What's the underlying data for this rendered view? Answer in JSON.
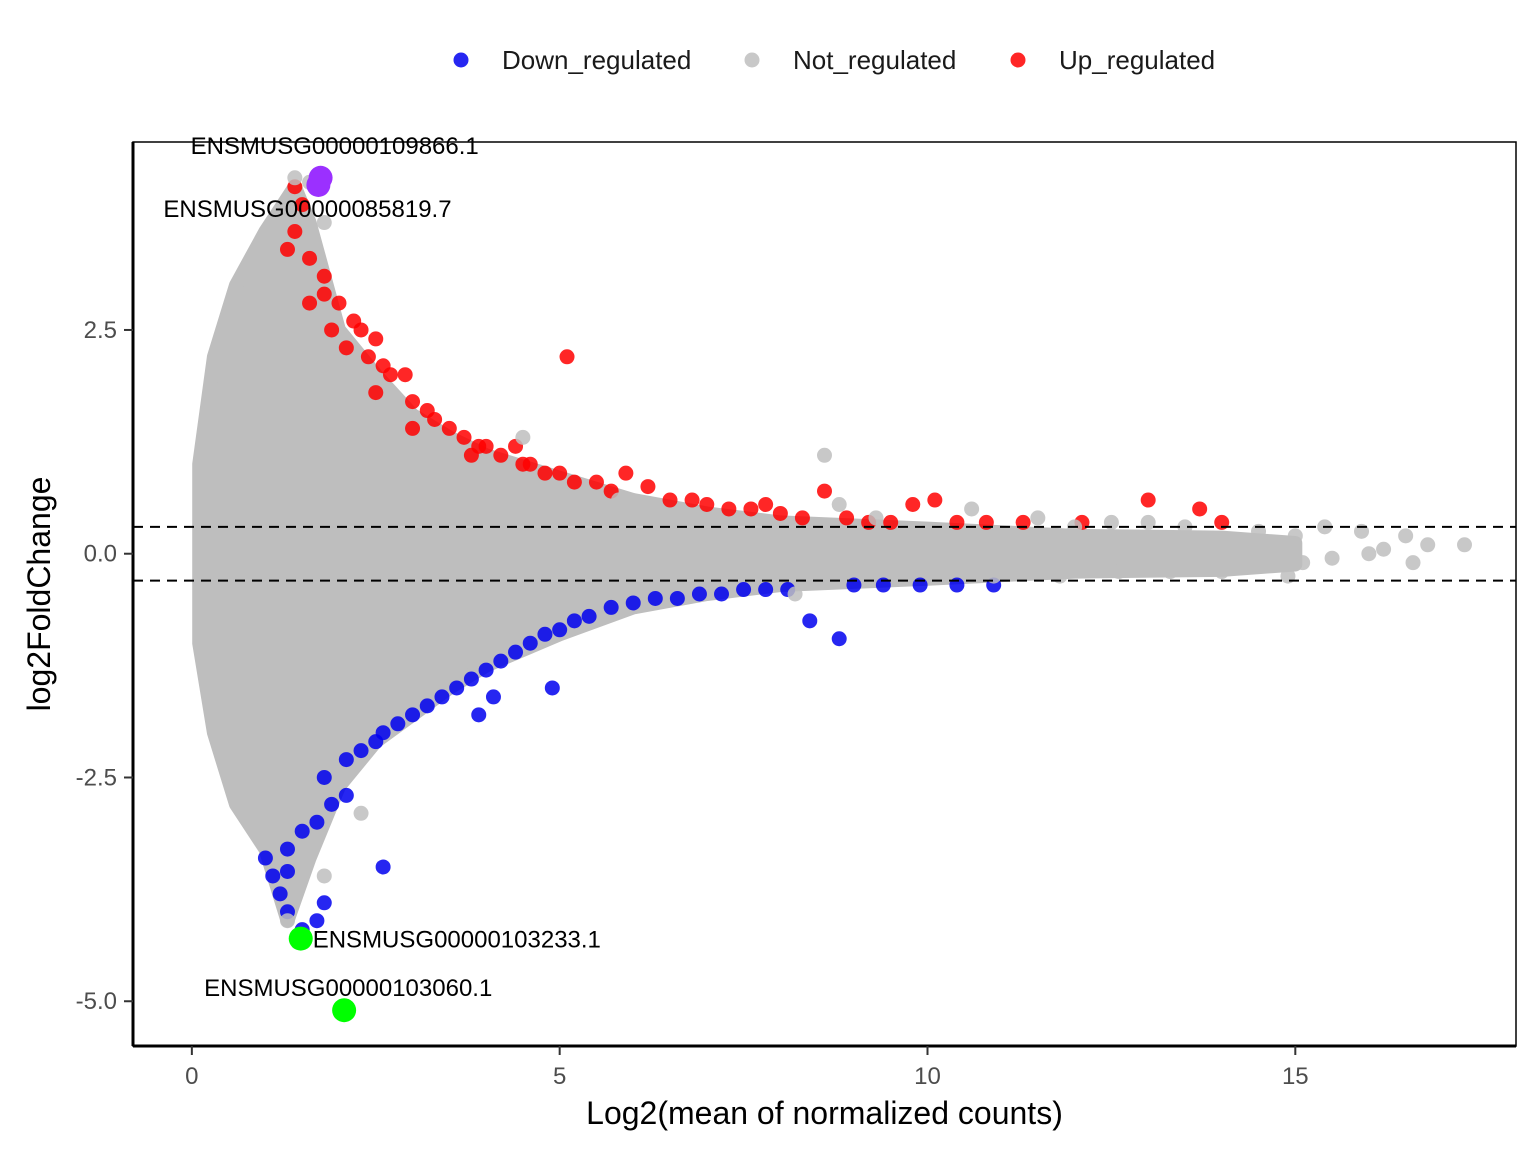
{
  "chart_data": {
    "type": "scatter",
    "title": "",
    "xlabel": "Log2(mean of normalized counts)",
    "ylabel": "log2FoldChange",
    "xlim": [
      -0.8,
      18.0
    ],
    "ylim": [
      -5.5,
      4.6
    ],
    "x_ticks": [
      0,
      5,
      10,
      15
    ],
    "x_tick_labels": [
      "0",
      "5",
      "10",
      "15"
    ],
    "y_ticks": [
      -5.0,
      -2.5,
      0.0,
      2.5
    ],
    "y_tick_labels": [
      "-5.0",
      "-2.5",
      "0.0",
      "2.5"
    ],
    "threshold_lines": [
      0.3,
      -0.3
    ],
    "grid": false,
    "legend_position": "top",
    "legend": [
      {
        "label": "Down_regulated",
        "color": "#0000ee"
      },
      {
        "label": "Not_regulated",
        "color": "#bebebe"
      },
      {
        "label": "Up_regulated",
        "color": "#ff0000"
      }
    ],
    "series": [
      {
        "name": "Up_regulated",
        "color": "#ff0000",
        "points": [
          [
            1.4,
            4.1
          ],
          [
            1.5,
            3.9
          ],
          [
            1.4,
            3.6
          ],
          [
            1.3,
            3.4
          ],
          [
            1.6,
            3.3
          ],
          [
            1.8,
            3.1
          ],
          [
            1.6,
            2.8
          ],
          [
            1.8,
            2.9
          ],
          [
            2.0,
            2.8
          ],
          [
            2.2,
            2.6
          ],
          [
            2.3,
            2.5
          ],
          [
            2.5,
            2.4
          ],
          [
            2.4,
            2.2
          ],
          [
            1.9,
            2.5
          ],
          [
            2.1,
            2.3
          ],
          [
            2.6,
            2.1
          ],
          [
            2.7,
            2.0
          ],
          [
            2.9,
            2.0
          ],
          [
            2.5,
            1.8
          ],
          [
            3.0,
            1.7
          ],
          [
            3.2,
            1.6
          ],
          [
            3.3,
            1.5
          ],
          [
            3.5,
            1.4
          ],
          [
            3.0,
            1.4
          ],
          [
            3.7,
            1.3
          ],
          [
            3.9,
            1.2
          ],
          [
            4.0,
            1.2
          ],
          [
            4.2,
            1.1
          ],
          [
            3.8,
            1.1
          ],
          [
            4.4,
            1.2
          ],
          [
            4.5,
            1.0
          ],
          [
            4.6,
            1.0
          ],
          [
            4.8,
            0.9
          ],
          [
            5.0,
            0.9
          ],
          [
            5.2,
            0.8
          ],
          [
            5.5,
            0.8
          ],
          [
            5.7,
            0.7
          ],
          [
            5.9,
            0.9
          ],
          [
            6.2,
            0.75
          ],
          [
            6.5,
            0.6
          ],
          [
            6.8,
            0.6
          ],
          [
            7.0,
            0.55
          ],
          [
            7.3,
            0.5
          ],
          [
            7.6,
            0.5
          ],
          [
            7.8,
            0.55
          ],
          [
            8.0,
            0.45
          ],
          [
            8.3,
            0.4
          ],
          [
            8.6,
            0.7
          ],
          [
            8.9,
            0.4
          ],
          [
            9.2,
            0.35
          ],
          [
            9.5,
            0.35
          ],
          [
            9.8,
            0.55
          ],
          [
            10.1,
            0.6
          ],
          [
            10.4,
            0.35
          ],
          [
            10.8,
            0.35
          ],
          [
            11.3,
            0.35
          ],
          [
            12.1,
            0.35
          ],
          [
            13.0,
            0.6
          ],
          [
            13.7,
            0.5
          ],
          [
            14.0,
            0.35
          ],
          [
            5.1,
            2.2
          ]
        ]
      },
      {
        "name": "Down_regulated",
        "color": "#0000ee",
        "points": [
          [
            1.0,
            -3.4
          ],
          [
            1.1,
            -3.6
          ],
          [
            1.2,
            -3.8
          ],
          [
            1.3,
            -4.0
          ],
          [
            1.5,
            -4.2
          ],
          [
            1.7,
            -4.1
          ],
          [
            1.8,
            -3.9
          ],
          [
            1.3,
            -3.3
          ],
          [
            1.5,
            -3.1
          ],
          [
            1.7,
            -3.0
          ],
          [
            1.9,
            -2.8
          ],
          [
            2.1,
            -2.7
          ],
          [
            1.8,
            -2.5
          ],
          [
            2.1,
            -2.3
          ],
          [
            2.3,
            -2.2
          ],
          [
            2.5,
            -2.1
          ],
          [
            2.6,
            -2.0
          ],
          [
            2.8,
            -1.9
          ],
          [
            3.0,
            -1.8
          ],
          [
            3.2,
            -1.7
          ],
          [
            3.4,
            -1.6
          ],
          [
            3.6,
            -1.5
          ],
          [
            3.8,
            -1.4
          ],
          [
            4.0,
            -1.3
          ],
          [
            4.2,
            -1.2
          ],
          [
            4.4,
            -1.1
          ],
          [
            3.9,
            -1.8
          ],
          [
            4.1,
            -1.6
          ],
          [
            4.6,
            -1.0
          ],
          [
            4.8,
            -0.9
          ],
          [
            5.0,
            -0.85
          ],
          [
            5.2,
            -0.75
          ],
          [
            5.4,
            -0.7
          ],
          [
            5.7,
            -0.6
          ],
          [
            6.0,
            -0.55
          ],
          [
            6.3,
            -0.5
          ],
          [
            6.6,
            -0.5
          ],
          [
            6.9,
            -0.45
          ],
          [
            7.2,
            -0.45
          ],
          [
            7.5,
            -0.4
          ],
          [
            7.8,
            -0.4
          ],
          [
            8.1,
            -0.4
          ],
          [
            8.4,
            -0.75
          ],
          [
            8.8,
            -0.95
          ],
          [
            9.0,
            -0.35
          ],
          [
            9.4,
            -0.35
          ],
          [
            9.9,
            -0.35
          ],
          [
            10.4,
            -0.35
          ],
          [
            10.9,
            -0.35
          ],
          [
            4.9,
            -1.5
          ],
          [
            2.6,
            -3.5
          ],
          [
            1.3,
            -3.55
          ]
        ]
      },
      {
        "name": "Not_regulated",
        "color": "#bebebe",
        "points": [
          [
            8.6,
            1.1
          ],
          [
            8.8,
            0.55
          ],
          [
            9.3,
            0.4
          ],
          [
            10.6,
            0.5
          ],
          [
            11.5,
            0.4
          ],
          [
            12.0,
            0.3
          ],
          [
            12.5,
            0.35
          ],
          [
            13.0,
            0.35
          ],
          [
            13.5,
            0.3
          ],
          [
            14.5,
            0.25
          ],
          [
            15.0,
            0.2
          ],
          [
            15.4,
            0.3
          ],
          [
            15.9,
            0.25
          ],
          [
            16.2,
            0.05
          ],
          [
            16.5,
            0.2
          ],
          [
            16.8,
            0.1
          ],
          [
            17.3,
            0.1
          ],
          [
            15.1,
            -0.1
          ],
          [
            15.5,
            -0.05
          ],
          [
            16.0,
            0.0
          ],
          [
            16.6,
            -0.1
          ],
          [
            14.9,
            -0.25
          ],
          [
            14.0,
            -0.2
          ],
          [
            13.3,
            -0.2
          ],
          [
            12.6,
            -0.2
          ],
          [
            11.8,
            -0.25
          ],
          [
            10.9,
            -0.25
          ],
          [
            1.4,
            4.2
          ],
          [
            1.6,
            4.15
          ],
          [
            1.8,
            3.7
          ],
          [
            1.5,
            3.0
          ],
          [
            2.1,
            2.0
          ],
          [
            4.5,
            1.3
          ],
          [
            5.8,
            0.6
          ],
          [
            6.9,
            0.3
          ],
          [
            7.8,
            0.35
          ],
          [
            8.2,
            -0.45
          ],
          [
            1.3,
            -4.1
          ],
          [
            1.8,
            -3.6
          ],
          [
            2.3,
            -2.9
          ]
        ]
      }
    ],
    "highlighted_genes": [
      {
        "label": "ENSMUSG00000109866.1",
        "x": 1.75,
        "y": 4.2,
        "color": "#9b30ff"
      },
      {
        "label": "ENSMUSG00000085819.7",
        "x": 1.72,
        "y": 4.12,
        "color": "#9b30ff"
      },
      {
        "label": "ENSMUSG00000103233.1",
        "x": 1.48,
        "y": -4.3,
        "color": "#00ff00"
      },
      {
        "label": "ENSMUSG00000103060.1",
        "x": 2.07,
        "y": -5.1,
        "color": "#00ff00"
      }
    ],
    "background_cloud": {
      "color": "#bebebe",
      "x_range": [
        0.1,
        15.0
      ],
      "envelope": [
        [
          0.1,
          1.0
        ],
        [
          0.3,
          2.2
        ],
        [
          0.6,
          3.0
        ],
        [
          1.0,
          3.6
        ],
        [
          1.4,
          4.1
        ],
        [
          1.6,
          3.7
        ],
        [
          2.0,
          2.5
        ],
        [
          2.5,
          2.0
        ],
        [
          3.0,
          1.55
        ],
        [
          3.5,
          1.3
        ],
        [
          4.0,
          1.1
        ],
        [
          5.0,
          0.85
        ],
        [
          6.0,
          0.6
        ],
        [
          7.0,
          0.45
        ],
        [
          8.0,
          0.35
        ],
        [
          10.0,
          0.28
        ],
        [
          12.0,
          0.2
        ],
        [
          14.0,
          0.18
        ],
        [
          15.0,
          0.12
        ]
      ],
      "envelope_bottom": [
        [
          0.1,
          -1.0
        ],
        [
          0.3,
          -2.0
        ],
        [
          0.6,
          -2.8
        ],
        [
          1.0,
          -3.3
        ],
        [
          1.3,
          -4.1
        ],
        [
          1.6,
          -3.4
        ],
        [
          2.0,
          -2.6
        ],
        [
          2.5,
          -2.1
        ],
        [
          3.0,
          -1.8
        ],
        [
          3.5,
          -1.5
        ],
        [
          4.0,
          -1.25
        ],
        [
          5.0,
          -0.9
        ],
        [
          6.0,
          -0.6
        ],
        [
          7.0,
          -0.45
        ],
        [
          8.0,
          -0.35
        ],
        [
          10.0,
          -0.28
        ],
        [
          12.0,
          -0.2
        ],
        [
          14.0,
          -0.18
        ],
        [
          15.0,
          -0.12
        ]
      ]
    }
  }
}
